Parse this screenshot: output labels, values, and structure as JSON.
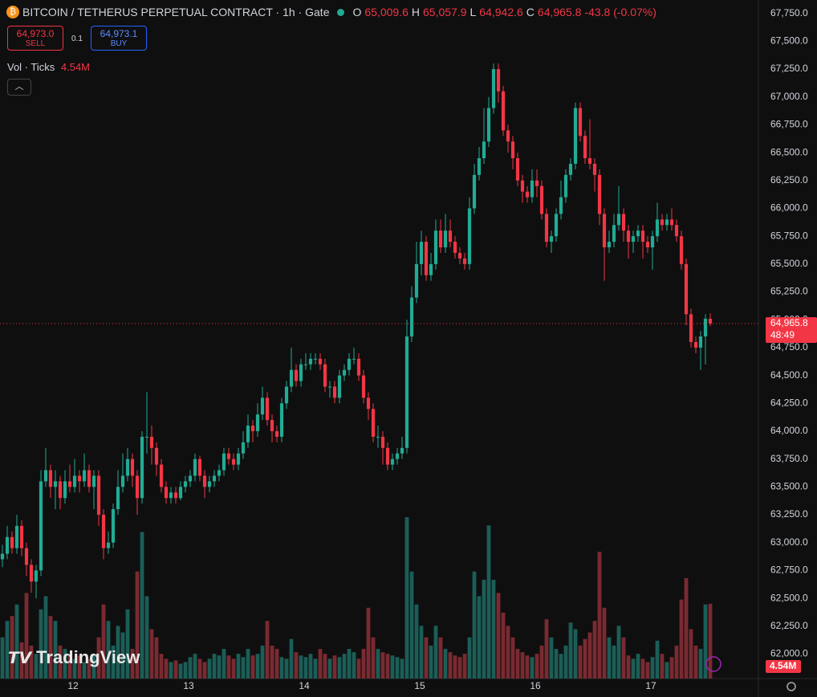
{
  "chart_data": {
    "type": "candlestick",
    "title": "BITCOIN / TETHERUS PERPETUAL CONTRACT · 1h · Gate",
    "ohlc_header": {
      "o_label": "O",
      "o": "65,009.6",
      "h_label": "H",
      "h": "65,057.9",
      "l_label": "L",
      "l": "64,942.6",
      "c_label": "C",
      "c": "64,965.8",
      "change": "-43.8 (-0.07%)"
    },
    "sell": {
      "price": "64,973.0",
      "label": "SELL"
    },
    "spread": "0.1",
    "buy": {
      "price": "64,973.1",
      "label": "BUY"
    },
    "volume_indicator": {
      "name": "Vol · Ticks",
      "value": "4.54M"
    },
    "watermark": "TradingView",
    "last_price_label": "64,965.8",
    "countdown": "48:49",
    "last_volume_label": "4.54M",
    "up_color": "#22ab94",
    "down_color": "#f23645",
    "up_volume_color": "#1b5e57",
    "down_volume_color": "#7a2a31",
    "grid": false,
    "xlim": [
      -0.5,
      157
    ],
    "xticks": [
      {
        "value": 14.67,
        "label": "12"
      },
      {
        "value": 38.67,
        "label": "13"
      },
      {
        "value": 62.67,
        "label": "14"
      },
      {
        "value": 86.67,
        "label": "15"
      },
      {
        "value": 110.67,
        "label": "16"
      },
      {
        "value": 134.67,
        "label": "17"
      }
    ],
    "ylim": [
      61780,
      67870
    ],
    "yticks": [
      {
        "value": 62000,
        "label": "62,000.0"
      },
      {
        "value": 62250,
        "label": "62,250.0"
      },
      {
        "value": 62500,
        "label": "62,500.0"
      },
      {
        "value": 62750,
        "label": "62,750.0"
      },
      {
        "value": 63000,
        "label": "63,000.0"
      },
      {
        "value": 63250,
        "label": "63,250.0"
      },
      {
        "value": 63500,
        "label": "63,500.0"
      },
      {
        "value": 63750,
        "label": "63,750.0"
      },
      {
        "value": 64000,
        "label": "64,000.0"
      },
      {
        "value": 64250,
        "label": "64,250.0"
      },
      {
        "value": 64500,
        "label": "64,500.0"
      },
      {
        "value": 64750,
        "label": "64,750.0"
      },
      {
        "value": 65000,
        "label": "65,000.0"
      },
      {
        "value": 65250,
        "label": "65,250.0"
      },
      {
        "value": 65500,
        "label": "65,500.0"
      },
      {
        "value": 65750,
        "label": "65,750.0"
      },
      {
        "value": 66000,
        "label": "66,000.0"
      },
      {
        "value": 66250,
        "label": "66,250.0"
      },
      {
        "value": 66500,
        "label": "66,500.0"
      },
      {
        "value": 66750,
        "label": "66,750.0"
      },
      {
        "value": 67000,
        "label": "67,000.0"
      },
      {
        "value": 67250,
        "label": "67,250.0"
      },
      {
        "value": 67500,
        "label": "67,500.0"
      },
      {
        "value": 67750,
        "label": "67,750.0"
      }
    ],
    "volume_ylim": [
      0,
      16
    ],
    "open": [
      62850,
      62900,
      63050,
      62950,
      63150,
      62950,
      62800,
      62650,
      62750,
      63550,
      63650,
      63500,
      63550,
      63400,
      63550,
      63500,
      63600,
      63550,
      63650,
      63500,
      63600,
      63250,
      62950,
      63000,
      63300,
      63500,
      63600,
      63750,
      63600,
      63400,
      63950,
      63950,
      63850,
      63700,
      63500,
      63400,
      63450,
      63400,
      63500,
      63550,
      63600,
      63750,
      63600,
      63500,
      63550,
      63600,
      63650,
      63800,
      63750,
      63700,
      63800,
      63900,
      64050,
      64000,
      64150,
      64300,
      64100,
      64000,
      63950,
      64250,
      64400,
      64550,
      64450,
      64600,
      64600,
      64650,
      64650,
      64600,
      64400,
      64400,
      64300,
      64500,
      64550,
      64650,
      64650,
      64500,
      64300,
      64200,
      63950,
      63950,
      63850,
      63700,
      63750,
      63800,
      63850,
      64850,
      65200,
      65500,
      65700,
      65400,
      65500,
      65800,
      65650,
      65800,
      65700,
      65600,
      65550,
      65500,
      66000,
      66300,
      66450,
      66600,
      66900,
      67250,
      67050,
      66700,
      66600,
      66450,
      66250,
      66150,
      66100,
      66250,
      66200,
      65950,
      65700,
      65750,
      65950,
      66100,
      66300,
      66400,
      66900,
      66650,
      66450,
      66400,
      66300,
      65950,
      65650,
      65700,
      65850,
      65950,
      65800,
      65700,
      65750,
      65800,
      65700,
      65650,
      65750,
      65900,
      65850,
      65900,
      65850,
      65750,
      65500,
      65050,
      64800,
      64750,
      64850,
      65009.6
    ],
    "high": [
      62980,
      63150,
      63100,
      63250,
      63200,
      63000,
      62850,
      62800,
      63650,
      63850,
      63700,
      63650,
      63600,
      63650,
      63700,
      63750,
      63650,
      63800,
      63700,
      63650,
      63650,
      63300,
      63100,
      63350,
      63650,
      63800,
      63850,
      63800,
      63650,
      64000,
      64350,
      64050,
      63900,
      63750,
      63550,
      63500,
      63500,
      63550,
      63600,
      63650,
      63800,
      63780,
      63650,
      63600,
      63650,
      63700,
      63850,
      63850,
      63800,
      63850,
      64000,
      64150,
      64100,
      64250,
      64400,
      64350,
      64150,
      64050,
      64300,
      64450,
      64750,
      64600,
      64650,
      64700,
      64700,
      64700,
      64700,
      64650,
      64450,
      64450,
      64550,
      64600,
      64700,
      64750,
      64700,
      64550,
      64350,
      64250,
      64050,
      64000,
      63900,
      63800,
      63850,
      63950,
      65000,
      65300,
      65700,
      65800,
      65750,
      65600,
      65900,
      65900,
      65950,
      65900,
      65750,
      65650,
      65600,
      66100,
      66400,
      66550,
      66900,
      67000,
      67300,
      67300,
      67100,
      66750,
      66650,
      66500,
      66300,
      66200,
      66350,
      66350,
      66250,
      66000,
      65800,
      66000,
      66250,
      66350,
      66450,
      66950,
      66950,
      66700,
      66800,
      66450,
      66350,
      66000,
      65800,
      65950,
      66200,
      66000,
      65850,
      65800,
      65850,
      65850,
      65750,
      65800,
      66050,
      65950,
      65950,
      66000,
      65900,
      65800,
      65550,
      65100,
      64850,
      64900,
      65050,
      65057.9
    ],
    "low": [
      62780,
      62850,
      62900,
      62900,
      62880,
      62700,
      62550,
      62500,
      62700,
      63500,
      63400,
      63300,
      63300,
      63350,
      63450,
      63450,
      63450,
      63500,
      63450,
      63300,
      63150,
      62850,
      62900,
      62950,
      63250,
      63450,
      63550,
      63500,
      63250,
      63350,
      63800,
      63700,
      63600,
      63450,
      63350,
      63350,
      63350,
      63380,
      63450,
      63500,
      63550,
      63550,
      63400,
      63450,
      63500,
      63550,
      63600,
      63700,
      63650,
      63650,
      63750,
      63850,
      63900,
      63950,
      64100,
      64050,
      63900,
      63900,
      63900,
      64200,
      64350,
      64400,
      64400,
      64550,
      64550,
      64600,
      64550,
      64350,
      64300,
      64250,
      64250,
      64450,
      64500,
      64600,
      64450,
      64250,
      64100,
      63900,
      63850,
      63700,
      63650,
      63650,
      63700,
      63750,
      63800,
      64800,
      65150,
      65400,
      65350,
      65350,
      65450,
      65600,
      65600,
      65650,
      65550,
      65500,
      65450,
      65450,
      65950,
      66250,
      66400,
      66550,
      66850,
      66950,
      66650,
      66500,
      66350,
      66200,
      66050,
      66050,
      66050,
      66100,
      65900,
      65650,
      65600,
      65700,
      65900,
      66050,
      66250,
      66350,
      66600,
      66400,
      66350,
      66150,
      65850,
      65350,
      65600,
      65650,
      65800,
      65700,
      65550,
      65600,
      65700,
      65550,
      65600,
      65450,
      65700,
      65800,
      65800,
      65800,
      65700,
      65450,
      64950,
      64750,
      64700,
      64550,
      64600,
      64942.6
    ],
    "close": [
      62900,
      63050,
      62950,
      63150,
      62950,
      62800,
      62650,
      62750,
      63550,
      63650,
      63500,
      63550,
      63400,
      63550,
      63500,
      63600,
      63550,
      63650,
      63500,
      63600,
      63250,
      62950,
      63000,
      63300,
      63500,
      63600,
      63750,
      63600,
      63400,
      63950,
      63950,
      63850,
      63700,
      63500,
      63400,
      63450,
      63400,
      63500,
      63550,
      63600,
      63750,
      63600,
      63500,
      63550,
      63600,
      63650,
      63800,
      63750,
      63700,
      63800,
      63900,
      64050,
      64000,
      64150,
      64300,
      64100,
      64000,
      63950,
      64250,
      64400,
      64550,
      64450,
      64600,
      64600,
      64650,
      64650,
      64600,
      64400,
      64400,
      64300,
      64500,
      64550,
      64650,
      64650,
      64500,
      64300,
      64200,
      63950,
      63950,
      63850,
      63700,
      63750,
      63800,
      63850,
      64850,
      65200,
      65500,
      65700,
      65400,
      65500,
      65800,
      65650,
      65800,
      65700,
      65600,
      65550,
      65500,
      66000,
      66300,
      66450,
      66600,
      66900,
      67250,
      67050,
      66700,
      66600,
      66450,
      66250,
      66150,
      66100,
      66250,
      66200,
      65950,
      65700,
      65750,
      65950,
      66100,
      66300,
      66400,
      66900,
      66650,
      66450,
      66400,
      66300,
      65950,
      65650,
      65700,
      65850,
      65950,
      65800,
      65700,
      65750,
      65800,
      65700,
      65650,
      65750,
      65900,
      65850,
      65900,
      65850,
      65750,
      65500,
      65050,
      64800,
      64750,
      64850,
      65009.6,
      64965.8
    ],
    "volume": [
      2.5,
      3.5,
      3.8,
      4.5,
      2.2,
      5.2,
      2.0,
      1.5,
      4.2,
      5.0,
      3.8,
      3.5,
      2.0,
      1.8,
      1.5,
      1.2,
      1.4,
      1.0,
      1.2,
      1.5,
      2.5,
      4.5,
      3.5,
      2.0,
      3.2,
      2.8,
      4.2,
      1.8,
      6.5,
      8.9,
      5.0,
      3.0,
      2.5,
      1.5,
      1.2,
      1.0,
      1.1,
      0.9,
      1.0,
      1.3,
      1.5,
      1.2,
      1.0,
      1.2,
      1.5,
      1.4,
      1.8,
      1.4,
      1.2,
      1.5,
      1.3,
      1.8,
      1.4,
      1.5,
      2.0,
      3.5,
      2.0,
      1.8,
      1.3,
      1.2,
      2.4,
      1.6,
      1.4,
      1.3,
      1.5,
      1.2,
      1.8,
      1.5,
      1.2,
      1.4,
      1.3,
      1.5,
      1.8,
      1.6,
      1.2,
      1.8,
      4.3,
      2.5,
      1.8,
      1.6,
      1.5,
      1.4,
      1.3,
      1.2,
      9.8,
      6.5,
      4.5,
      3.2,
      2.5,
      2.0,
      3.2,
      2.5,
      1.8,
      1.6,
      1.4,
      1.3,
      1.5,
      2.5,
      6.5,
      5.0,
      6.0,
      9.3,
      6.0,
      5.2,
      4.0,
      3.2,
      2.5,
      1.8,
      1.6,
      1.4,
      1.3,
      1.5,
      2.0,
      3.6,
      2.5,
      1.8,
      1.5,
      2.0,
      3.4,
      3.0,
      2.0,
      2.4,
      2.8,
      3.5,
      7.7,
      4.3,
      2.5,
      2.0,
      3.2,
      2.5,
      1.4,
      1.2,
      1.5,
      1.2,
      1.0,
      1.3,
      2.3,
      1.5,
      1.0,
      1.3,
      2.0,
      4.8,
      6.1,
      3.0,
      2.0,
      1.8,
      4.5,
      4.54
    ]
  }
}
